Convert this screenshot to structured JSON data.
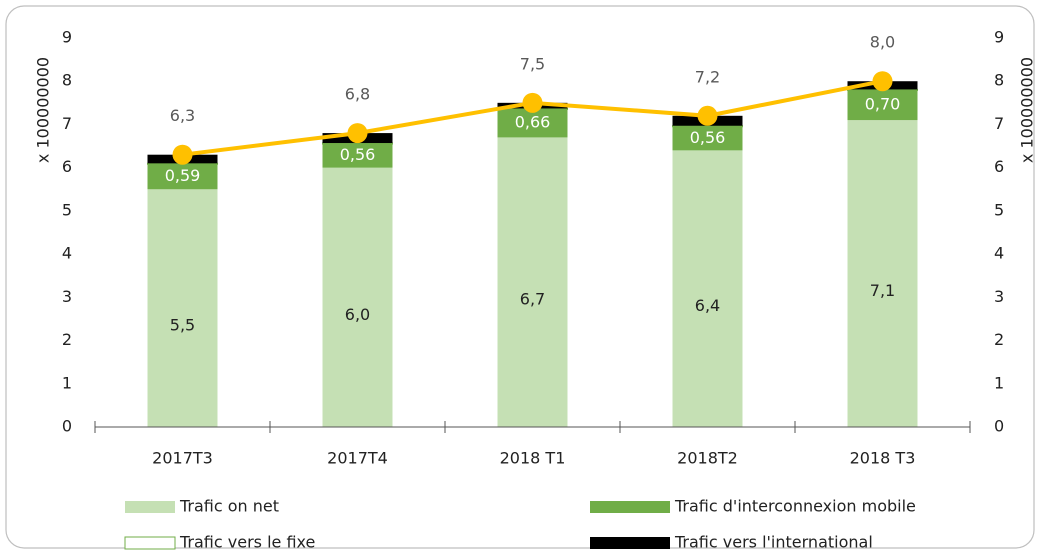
{
  "chart_data": {
    "type": "bar",
    "stacked": true,
    "categories": [
      "2017T3",
      "2017T4",
      "2018 T1",
      "2018T2",
      "2018 T3"
    ],
    "ylabel": "x 100000000",
    "y2label": "x 100000000",
    "ylim": [
      0,
      9
    ],
    "yticks": [
      0,
      1,
      2,
      3,
      4,
      5,
      6,
      7,
      8,
      9
    ],
    "y2lim": [
      0,
      9
    ],
    "y2ticks": [
      0,
      1,
      2,
      3,
      4,
      5,
      6,
      7,
      8,
      9
    ],
    "grid": false,
    "legend": "bottom",
    "series": [
      {
        "name": "Trafic on net",
        "color": "#c5e0b4",
        "values": [
          5.5,
          6.0,
          6.7,
          6.4,
          7.1
        ],
        "value_labels": [
          "5,5",
          "6,0",
          "6,7",
          "6,4",
          "7,1"
        ]
      },
      {
        "name": "Trafic d'interconnexion mobile",
        "color": "#70ad47",
        "values": [
          0.59,
          0.56,
          0.66,
          0.56,
          0.7
        ],
        "value_labels": [
          "0,59",
          "0,56",
          "0,66",
          "0,56",
          "0,70"
        ]
      },
      {
        "name": "Trafic vers le fixe",
        "color": "#ffffff",
        "values": [
          0.01,
          0.01,
          0.01,
          0.01,
          0.01
        ]
      },
      {
        "name": "Trafic vers l'international",
        "color": "#000000",
        "values": [
          0.2,
          0.23,
          0.13,
          0.23,
          0.19
        ]
      }
    ],
    "line": {
      "color": "#ffc000",
      "values": [
        6.3,
        6.8,
        7.5,
        7.2,
        8.0
      ],
      "value_labels": [
        "6,3",
        "6,8",
        "7,5",
        "7,2",
        "8,0"
      ]
    }
  }
}
